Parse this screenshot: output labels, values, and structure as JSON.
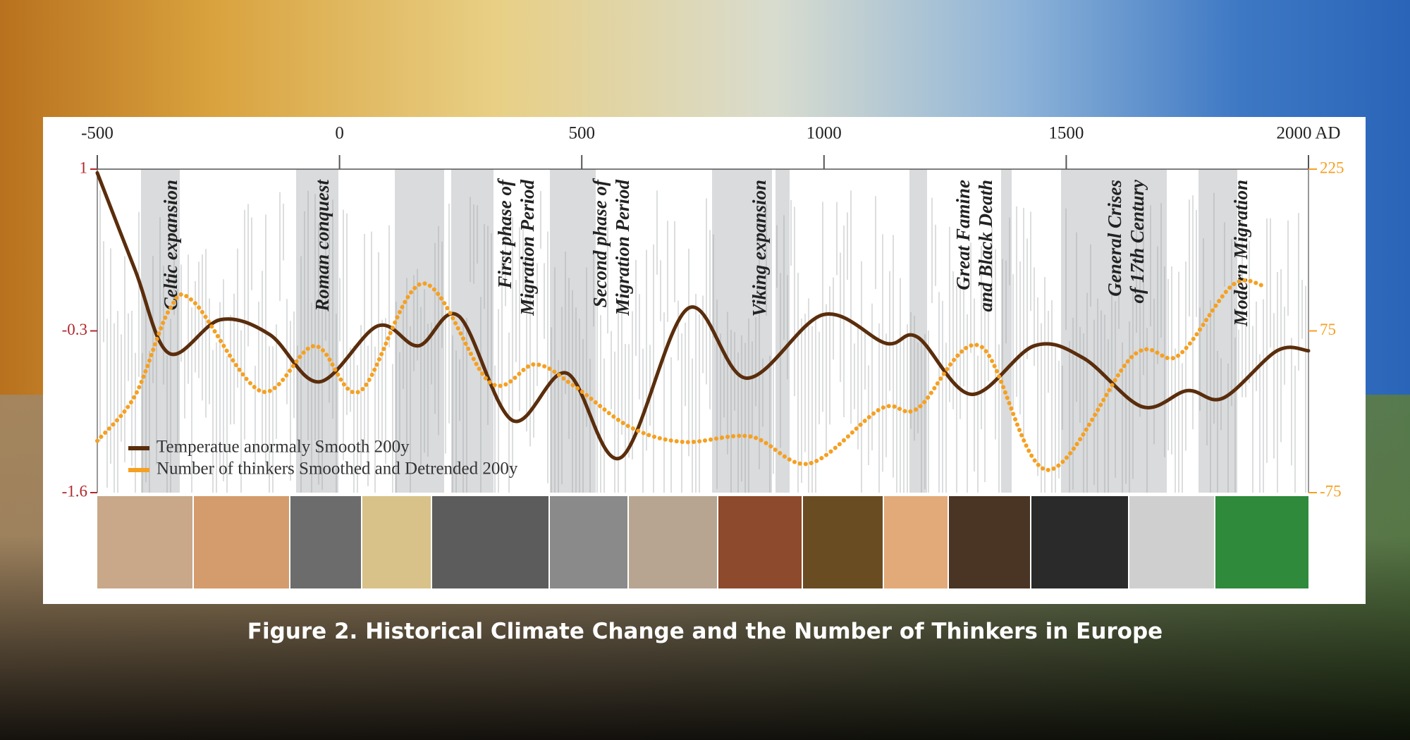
{
  "chart_data": {
    "type": "line",
    "title": "Figure 2. Historical Climate Change and the Number of Thinkers in Europe",
    "xlim": [
      -500,
      2000
    ],
    "xticks": [
      -500,
      0,
      500,
      1000,
      1500,
      {
        "value": 2000,
        "label": "2000 AD"
      }
    ],
    "ylim": [
      -1.6,
      1
    ],
    "yticks": [
      1,
      -0.3,
      -1.6
    ],
    "ycolor": "#b0282c",
    "y2lim": [
      -75,
      225
    ],
    "y2ticks": [
      225,
      75,
      -75
    ],
    "y2color": "#f5a021",
    "legend": "bottom-left",
    "annotations": [
      [
        "Celtic expansion"
      ],
      [
        "Roman conquest"
      ],
      [
        "First phase of",
        "Migration Period"
      ],
      [
        "Second phase of",
        "Migration Period"
      ],
      [
        "Viking expansion"
      ],
      [
        "Great Famine",
        "and Black Death"
      ],
      [
        "General Crises",
        "of 17th Century"
      ],
      [
        "Modern Migration"
      ]
    ],
    "series": [
      {
        "name": "Temperatue anormaly Smooth 200y",
        "color": "#5a2d0c",
        "x": [
          -500,
          -422,
          -352,
          -246,
          -144,
          -42,
          79,
          163,
          246,
          357,
          469,
          580,
          719,
          840,
          998,
          1128,
          1193,
          1304,
          1434,
          1536,
          1657,
          1750,
          1824,
          1935,
          2000
        ],
        "values": [
          0.97,
          0.19,
          -0.48,
          -0.21,
          -0.33,
          -0.71,
          -0.26,
          -0.42,
          -0.18,
          -1.02,
          -0.64,
          -1.32,
          -0.12,
          -0.68,
          -0.17,
          -0.4,
          -0.35,
          -0.81,
          -0.42,
          -0.52,
          -0.91,
          -0.78,
          -0.84,
          -0.46,
          -0.46
        ]
      },
      {
        "name": "Number of thinkers Smoothed and Detrended 200y",
        "color": "#f5a021",
        "axis": "y2",
        "x": [
          -500,
          -422,
          -352,
          -301,
          -162,
          -51,
          42,
          172,
          311,
          404,
          487,
          599,
          710,
          849,
          970,
          1118,
          1193,
          1322,
          1461,
          1638,
          1731,
          1842,
          1907
        ],
        "values": [
          -27,
          15,
          94,
          102,
          19,
          61,
          19,
          119,
          27,
          44,
          23,
          -14,
          -28,
          -23,
          -48,
          3,
          3,
          61,
          -54,
          52,
          52,
          117,
          117
        ]
      }
    ]
  }
}
